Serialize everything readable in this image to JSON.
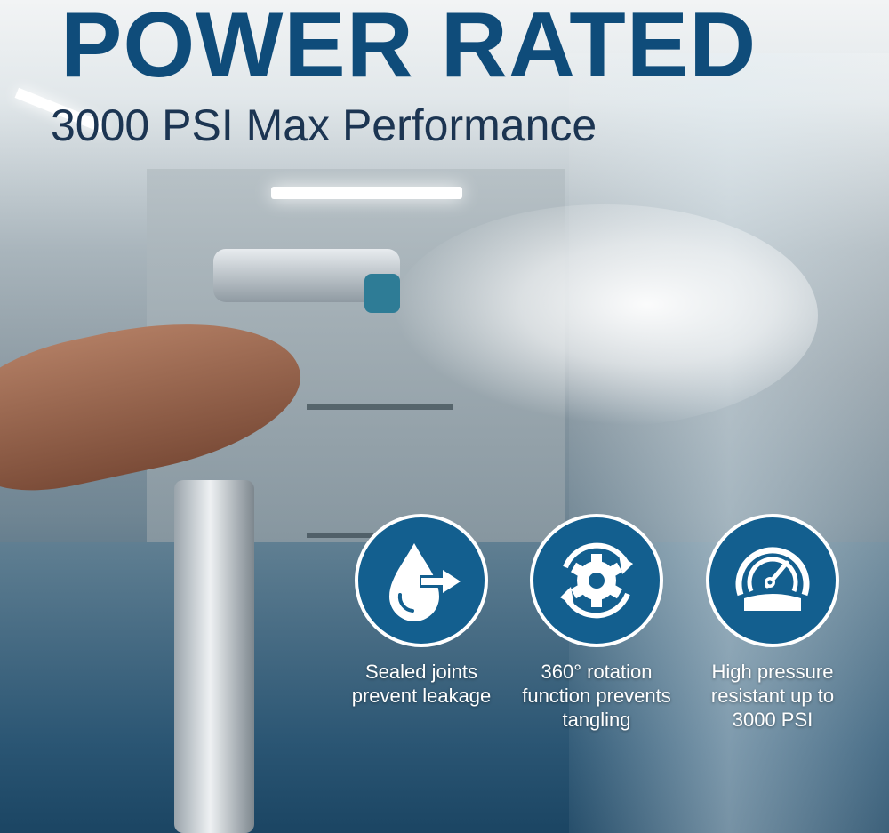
{
  "header": {
    "title": "POWER RATED",
    "subtitle": "3000 PSI Max Performance"
  },
  "colors": {
    "title": "#0f4c7a",
    "subtitle": "#1c3552",
    "icon_circle": "#135f8f"
  },
  "features": [
    {
      "icon": "water-drop-arrow-icon",
      "label_lines": [
        "Sealed joints",
        "prevent leakage"
      ]
    },
    {
      "icon": "gear-rotation-icon",
      "label_lines": [
        "360° rotation",
        "function prevents",
        "tangling"
      ]
    },
    {
      "icon": "pressure-gauge-icon",
      "label_lines": [
        "High pressure",
        "resistant up to",
        "3000 PSI"
      ]
    }
  ]
}
